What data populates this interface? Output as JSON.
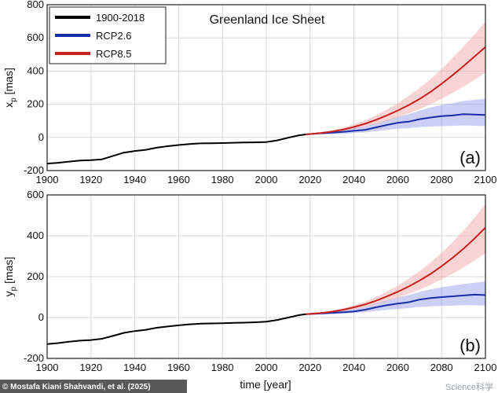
{
  "chart_data": [
    {
      "type": "line",
      "panel_label": "(a)",
      "title": "Greenland Ice Sheet",
      "xlabel": "",
      "ylabel": "x_p [mas]",
      "ylabel_main": "x",
      "ylabel_sub": "p",
      "ylabel_unit": "[mas]",
      "xlim": [
        1900,
        2100
      ],
      "ylim": [
        -200,
        800
      ],
      "xticks": [
        1900,
        1920,
        1940,
        1960,
        1980,
        2000,
        2020,
        2040,
        2060,
        2080,
        2100
      ],
      "yticks": [
        -200,
        0,
        200,
        400,
        600,
        800
      ],
      "grid": true,
      "legend_position": "top-left",
      "series": [
        {
          "name": "1900-2018",
          "color": "#000000",
          "x": [
            1900,
            1905,
            1910,
            1915,
            1920,
            1925,
            1930,
            1935,
            1940,
            1945,
            1950,
            1955,
            1960,
            1965,
            1970,
            1975,
            1980,
            1985,
            1990,
            1995,
            2000,
            2005,
            2010,
            2015,
            2018
          ],
          "y": [
            -158,
            -153,
            -146,
            -140,
            -137,
            -132,
            -112,
            -92,
            -82,
            -75,
            -62,
            -53,
            -46,
            -40,
            -36,
            -35,
            -34,
            -32,
            -31,
            -30,
            -28,
            -18,
            -2,
            13,
            18
          ]
        },
        {
          "name": "RCP2.6",
          "color": "#1a2ea6",
          "band_color": "#8c96e6",
          "x": [
            2018,
            2025,
            2030,
            2035,
            2040,
            2045,
            2050,
            2055,
            2060,
            2065,
            2070,
            2075,
            2080,
            2085,
            2090,
            2095,
            2100
          ],
          "y": [
            18,
            25,
            29,
            33,
            40,
            45,
            60,
            75,
            88,
            95,
            110,
            120,
            128,
            132,
            140,
            138,
            135
          ],
          "lower": [
            15,
            18,
            20,
            22,
            26,
            30,
            38,
            45,
            52,
            56,
            62,
            66,
            68,
            70,
            72,
            70,
            68
          ],
          "upper": [
            22,
            33,
            40,
            46,
            56,
            66,
            84,
            104,
            124,
            140,
            162,
            180,
            196,
            206,
            220,
            226,
            232
          ]
        },
        {
          "name": "RCP8.5",
          "color": "#c8201e",
          "band_color": "#f0a0a0",
          "x": [
            2018,
            2025,
            2030,
            2035,
            2040,
            2045,
            2050,
            2055,
            2060,
            2065,
            2070,
            2075,
            2080,
            2085,
            2090,
            2095,
            2100
          ],
          "y": [
            18,
            26,
            35,
            47,
            63,
            82,
            105,
            132,
            162,
            195,
            232,
            275,
            323,
            375,
            430,
            487,
            545
          ],
          "lower": [
            16,
            22,
            29,
            38,
            50,
            64,
            80,
            100,
            122,
            145,
            170,
            200,
            232,
            268,
            306,
            346,
            390
          ],
          "upper": [
            21,
            31,
            43,
            58,
            78,
            102,
            132,
            167,
            206,
            250,
            298,
            352,
            412,
            478,
            548,
            620,
            698
          ]
        }
      ]
    },
    {
      "type": "line",
      "panel_label": "(b)",
      "title": "",
      "xlabel": "time [year]",
      "ylabel": "y_p [mas]",
      "ylabel_main": "y",
      "ylabel_sub": "p",
      "ylabel_unit": "[mas]",
      "xlim": [
        1900,
        2100
      ],
      "ylim": [
        -200,
        600
      ],
      "xticks": [
        1900,
        1920,
        1940,
        1960,
        1980,
        2000,
        2020,
        2040,
        2060,
        2080,
        2100
      ],
      "yticks": [
        -200,
        0,
        200,
        400,
        600
      ],
      "grid": true,
      "series": [
        {
          "name": "1900-2018",
          "color": "#000000",
          "x": [
            1900,
            1905,
            1910,
            1915,
            1920,
            1925,
            1930,
            1935,
            1940,
            1945,
            1950,
            1955,
            1960,
            1965,
            1970,
            1975,
            1980,
            1985,
            1990,
            1995,
            2000,
            2005,
            2010,
            2015,
            2018
          ],
          "y": [
            -130,
            -125,
            -118,
            -113,
            -110,
            -104,
            -90,
            -75,
            -66,
            -60,
            -50,
            -44,
            -38,
            -33,
            -30,
            -29,
            -28,
            -26,
            -25,
            -23,
            -20,
            -12,
            0,
            12,
            16
          ]
        },
        {
          "name": "RCP2.6",
          "color": "#1a2ea6",
          "band_color": "#8c96e6",
          "x": [
            2018,
            2025,
            2030,
            2035,
            2040,
            2045,
            2050,
            2055,
            2060,
            2065,
            2070,
            2075,
            2080,
            2085,
            2090,
            2095,
            2100
          ],
          "y": [
            16,
            20,
            23,
            26,
            30,
            38,
            50,
            60,
            68,
            75,
            88,
            95,
            100,
            104,
            108,
            112,
            110
          ],
          "lower": [
            13,
            15,
            17,
            19,
            22,
            26,
            32,
            38,
            42,
            46,
            52,
            55,
            57,
            58,
            60,
            60,
            58
          ],
          "upper": [
            19,
            26,
            30,
            35,
            42,
            52,
            68,
            84,
            98,
            110,
            126,
            138,
            148,
            156,
            164,
            170,
            176
          ]
        },
        {
          "name": "RCP8.5",
          "color": "#c8201e",
          "band_color": "#f0a0a0",
          "x": [
            2018,
            2025,
            2030,
            2035,
            2040,
            2045,
            2050,
            2055,
            2060,
            2065,
            2070,
            2075,
            2080,
            2085,
            2090,
            2095,
            2100
          ],
          "y": [
            16,
            22,
            29,
            38,
            50,
            64,
            82,
            103,
            126,
            152,
            181,
            214,
            251,
            292,
            337,
            386,
            440
          ],
          "lower": [
            14,
            19,
            24,
            31,
            40,
            51,
            64,
            80,
            97,
            116,
            137,
            160,
            186,
            214,
            245,
            278,
            314
          ],
          "upper": [
            18,
            26,
            34,
            45,
            60,
            78,
            100,
            127,
            157,
            190,
            228,
            270,
            317,
            369,
            426,
            488,
            556
          ]
        }
      ]
    }
  ],
  "credit": "© Mostafa Kiani Shahvandi, et al. (2025)",
  "watermark": "Science科学"
}
